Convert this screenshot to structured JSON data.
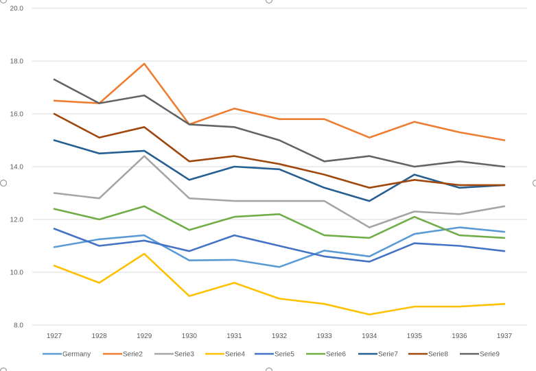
{
  "chart_data": {
    "type": "line",
    "title": "",
    "xlabel": "",
    "ylabel": "",
    "categories": [
      "1927",
      "1928",
      "1929",
      "1930",
      "1931",
      "1932",
      "1933",
      "1934",
      "1935",
      "1936",
      "1937"
    ],
    "ylim": [
      8.0,
      20.0
    ],
    "yticks": [
      "8.0",
      "10.0",
      "12.0",
      "14.0",
      "16.0",
      "18.0",
      "20.0"
    ],
    "grid": true,
    "legend_position": "bottom",
    "series": [
      {
        "name": "Germany",
        "color": "#5b9bd5",
        "values": [
          10.95,
          11.25,
          11.4,
          10.45,
          10.47,
          10.2,
          10.82,
          10.6,
          11.45,
          11.7,
          11.53
        ]
      },
      {
        "name": "Serie2",
        "color": "#ed7d31",
        "values": [
          16.5,
          16.4,
          17.9,
          15.6,
          16.2,
          15.8,
          15.8,
          15.1,
          15.7,
          15.3,
          15.0
        ]
      },
      {
        "name": "Serie3",
        "color": "#a5a5a5",
        "values": [
          13.0,
          12.8,
          14.4,
          12.8,
          12.7,
          12.7,
          12.7,
          11.7,
          12.3,
          12.2,
          12.5
        ]
      },
      {
        "name": "Serie4",
        "color": "#ffc000",
        "values": [
          10.25,
          9.6,
          10.7,
          9.1,
          9.6,
          9.0,
          8.8,
          8.4,
          8.7,
          8.7,
          8.8
        ]
      },
      {
        "name": "Serie5",
        "color": "#4472c4",
        "values": [
          11.65,
          11.0,
          11.2,
          10.8,
          11.4,
          11.0,
          10.6,
          10.4,
          11.1,
          11.0,
          10.8
        ]
      },
      {
        "name": "Serie6",
        "color": "#70ad47",
        "values": [
          12.4,
          12.0,
          12.5,
          11.6,
          12.1,
          12.2,
          11.4,
          11.3,
          12.1,
          11.4,
          11.3
        ]
      },
      {
        "name": "Serie7",
        "color": "#255e91",
        "values": [
          15.0,
          14.5,
          14.6,
          13.5,
          14.0,
          13.9,
          13.2,
          12.7,
          13.7,
          13.2,
          13.3
        ]
      },
      {
        "name": "Serie8",
        "color": "#9e480e",
        "values": [
          16.0,
          15.1,
          15.5,
          14.2,
          14.4,
          14.1,
          13.7,
          13.2,
          13.5,
          13.3,
          13.3
        ]
      },
      {
        "name": "Serie9",
        "color": "#636363",
        "values": [
          17.3,
          16.4,
          16.7,
          15.6,
          15.5,
          15.0,
          14.2,
          14.4,
          14.0,
          14.2,
          14.0
        ]
      }
    ]
  }
}
